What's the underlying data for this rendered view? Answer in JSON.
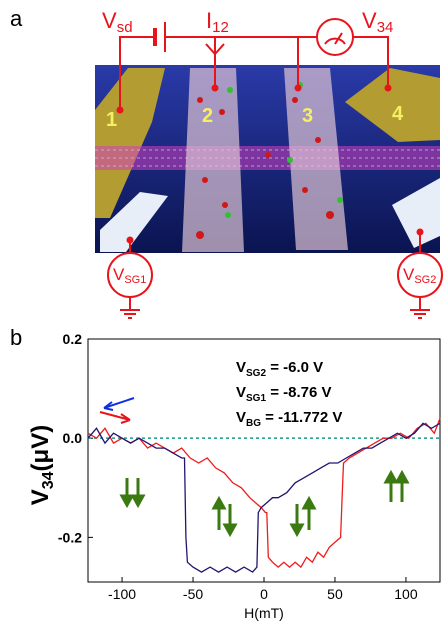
{
  "figure": {
    "panel_a": "a",
    "panel_b": "b",
    "electrodes": [
      "1",
      "2",
      "3",
      "4"
    ],
    "vsd": {
      "main": "V",
      "sub": "sd"
    },
    "i12": {
      "main": "I",
      "sub": "12"
    },
    "v34": {
      "main": "V",
      "sub": "34"
    },
    "vsg1": {
      "main": "V",
      "sub": "SG1"
    },
    "vsg2": {
      "main": "V",
      "sub": "SG2"
    }
  },
  "chart_data": {
    "type": "line",
    "xlabel": "H(mT)",
    "ylabel": {
      "main": "V",
      "sub": "34",
      "rest": "(μV)"
    },
    "annotations": [
      {
        "main": "V",
        "sub": "SG2",
        "rest": " = -6.0 V"
      },
      {
        "main": "V",
        "sub": "SG1",
        "rest": " = -8.76 V"
      },
      {
        "main": "V",
        "sub": "BG",
        "rest": " = -11.772 V"
      }
    ],
    "xlim": [
      -124,
      124
    ],
    "ylim": [
      -0.29,
      0.2
    ],
    "xticks": [
      -100,
      -50,
      0,
      50,
      100
    ],
    "yticks": [
      0.2,
      {
        "value": 0,
        "label": "0.0"
      },
      -0.2
    ],
    "zero_line": true,
    "zero_line_color": "#1a9a8a",
    "series": [
      {
        "color": "#ee1c1c",
        "x": [
          -124,
          -118,
          -112,
          -106,
          -100,
          -94,
          -88,
          -82,
          -76,
          -70,
          -64,
          -58,
          -52,
          -46,
          -40,
          -34,
          -28,
          -22,
          -16,
          -10,
          -6,
          -2,
          1,
          2,
          3,
          6,
          10,
          14,
          18,
          22,
          26,
          30,
          34,
          38,
          42,
          46,
          50,
          54,
          55,
          56,
          60,
          66,
          72,
          78,
          84,
          90,
          96,
          102,
          108,
          114,
          120,
          124
        ],
        "values": [
          0.01,
          0,
          0.02,
          -0.01,
          0,
          -0.01,
          0,
          -0.02,
          -0.01,
          -0.02,
          -0.03,
          -0.02,
          -0.04,
          -0.05,
          -0.04,
          -0.06,
          -0.07,
          -0.09,
          -0.1,
          -0.12,
          -0.13,
          -0.14,
          -0.15,
          -0.15,
          -0.24,
          -0.25,
          -0.26,
          -0.25,
          -0.26,
          -0.25,
          -0.26,
          -0.24,
          -0.25,
          -0.23,
          -0.24,
          -0.22,
          -0.21,
          -0.2,
          -0.12,
          -0.05,
          -0.04,
          -0.03,
          -0.02,
          -0.01,
          0,
          0,
          0.01,
          0,
          0.02,
          0.03,
          0.01,
          0.04
        ]
      },
      {
        "color": "#241470",
        "x": [
          -124,
          -118,
          -112,
          -106,
          -100,
          -94,
          -88,
          -82,
          -76,
          -70,
          -64,
          -58,
          -56,
          -55,
          -54,
          -50,
          -44,
          -38,
          -32,
          -26,
          -20,
          -14,
          -8,
          -5,
          -4,
          -2,
          2,
          6,
          10,
          16,
          22,
          28,
          34,
          40,
          46,
          52,
          58,
          64,
          70,
          76,
          82,
          88,
          94,
          100,
          106,
          112,
          118,
          124
        ],
        "values": [
          0,
          0.02,
          -0.01,
          0.01,
          0,
          -0.01,
          0,
          -0.01,
          -0.02,
          -0.02,
          -0.03,
          -0.04,
          -0.04,
          -0.2,
          -0.25,
          -0.26,
          -0.27,
          -0.26,
          -0.27,
          -0.26,
          -0.27,
          -0.26,
          -0.27,
          -0.26,
          -0.15,
          -0.14,
          -0.13,
          -0.12,
          -0.12,
          -0.11,
          -0.09,
          -0.08,
          -0.07,
          -0.06,
          -0.05,
          -0.05,
          -0.04,
          -0.03,
          -0.02,
          -0.02,
          -0.01,
          0,
          0.01,
          0,
          0.01,
          0.03,
          0.02,
          0.03
        ]
      }
    ]
  }
}
